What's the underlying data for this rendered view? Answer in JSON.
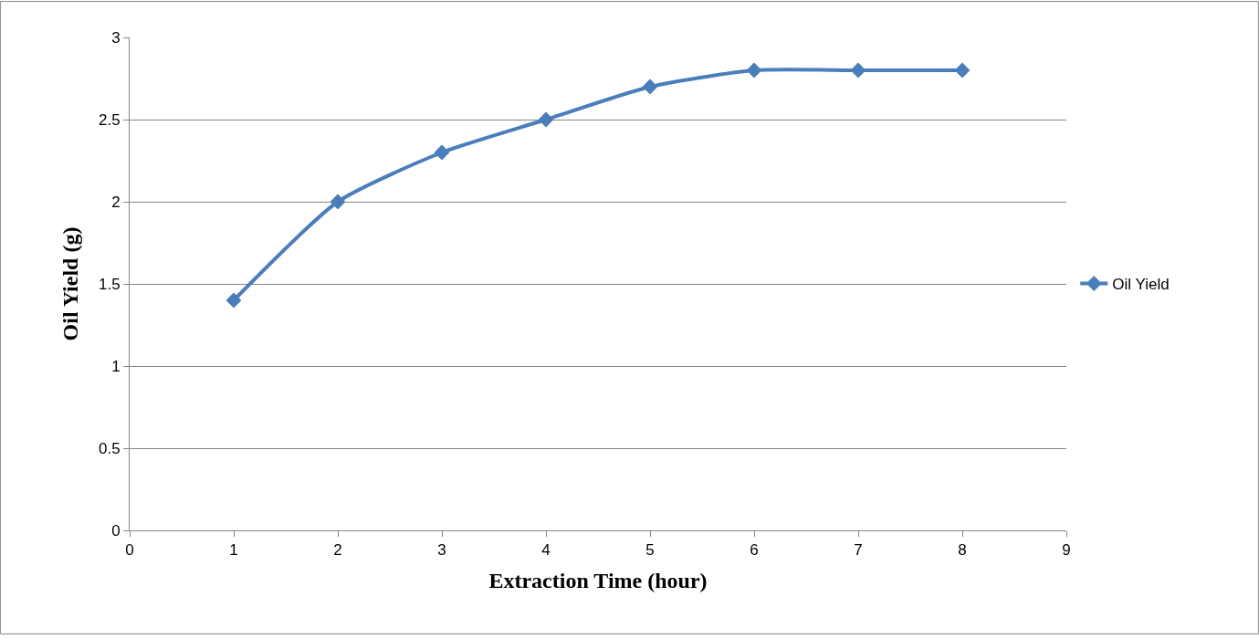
{
  "chart_data": {
    "type": "line",
    "xlabel": "Extraction Time (hour)",
    "ylabel": "Oil Yield (g)",
    "x": [
      1,
      2,
      3,
      4,
      5,
      6,
      7,
      8
    ],
    "series": [
      {
        "name": "Oil Yield",
        "color": "#4a7ebb",
        "values": [
          1.4,
          2.0,
          2.3,
          2.5,
          2.7,
          2.8,
          2.8,
          2.8
        ]
      }
    ],
    "xlim": [
      0,
      9
    ],
    "xticks": [
      0,
      1,
      2,
      3,
      4,
      5,
      6,
      7,
      8,
      9
    ],
    "ylim": [
      0,
      3
    ],
    "yticks": [
      0,
      0.5,
      1,
      1.5,
      2,
      2.5,
      3
    ],
    "grid": "y",
    "legend": "right",
    "marker": "diamond",
    "line_style": "solid"
  }
}
